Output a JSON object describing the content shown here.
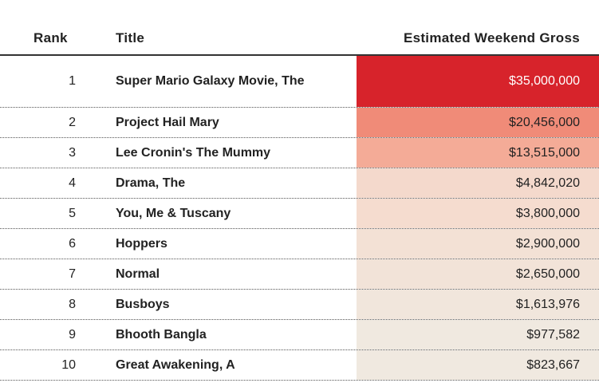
{
  "header": {
    "rank": "Rank",
    "title": "Title",
    "gross": "Estimated Weekend Gross"
  },
  "rows": [
    [
      "1",
      "Super Mario Galaxy Movie, The",
      "$35,000,000"
    ],
    [
      "2",
      "Project Hail Mary",
      "$20,456,000"
    ],
    [
      "3",
      "Lee Cronin's The Mummy",
      "$13,515,000"
    ],
    [
      "4",
      "Drama, The",
      "$4,842,020"
    ],
    [
      "5",
      "You, Me & Tuscany",
      "$3,800,000"
    ],
    [
      "6",
      "Hoppers",
      "$2,900,000"
    ],
    [
      "7",
      "Normal",
      "$2,650,000"
    ],
    [
      "8",
      "Busboys",
      "$1,613,976"
    ],
    [
      "9",
      "Bhooth Bangla",
      "$977,582"
    ],
    [
      "10",
      "Great Awakening, A",
      "$823,667"
    ]
  ],
  "cell_colors": [
    "#d7232b",
    "#f08b78",
    "#f4ab97",
    "#f4d9cc",
    "#f5dccf",
    "#f3e1d5",
    "#f2e3d8",
    "#f1e6dc",
    "#f0e9e0",
    "#f0e9e0"
  ]
}
